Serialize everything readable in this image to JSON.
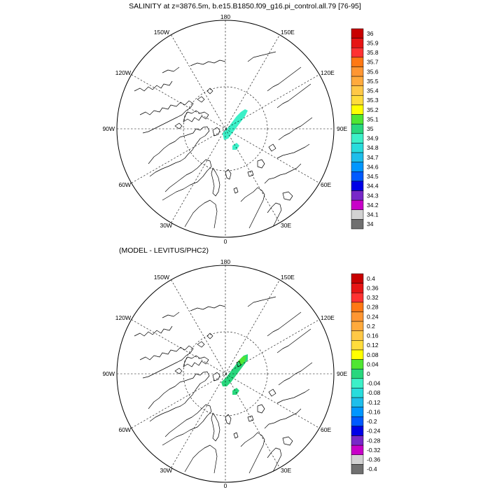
{
  "panels": [
    {
      "id": "salinity",
      "title": "SALINITY at z=3876.5m, b.e15.B1850.f09_g16.pi_control.all.79 [76-95]",
      "lon_labels": {
        "top": "180",
        "bottom": "0",
        "left": "90W",
        "right": "90E",
        "ul1": "150W",
        "ul2": "120W",
        "ll1": "60W",
        "ll2": "30W",
        "ur1": "150E",
        "ur2": "120E",
        "lr1": "60E",
        "lr2": "30E"
      },
      "colorbar": {
        "labels": [
          "36",
          "35.9",
          "35.8",
          "35.7",
          "35.6",
          "35.5",
          "35.4",
          "35.3",
          "35.2",
          "35.1",
          "35",
          "34.9",
          "34.8",
          "34.7",
          "34.6",
          "34.5",
          "34.4",
          "34.3",
          "34.2",
          "34.1",
          "34"
        ],
        "colors": [
          "#c80000",
          "#e61414",
          "#ff3232",
          "#ff7814",
          "#ff9632",
          "#ffaa3c",
          "#ffc846",
          "#ffdc3c",
          "#ffff00",
          "#50e632",
          "#28d77d",
          "#3cf0c8",
          "#28dcdc",
          "#1ebeeb",
          "#0096ff",
          "#005aff",
          "#0000e6",
          "#7828c8",
          "#c800c8",
          "#d2d2d2",
          "#707070"
        ]
      },
      "field_color": "#3cf0c8"
    },
    {
      "id": "difference",
      "title": "(MODEL - LEVITUS/PHC2)",
      "lon_labels": {
        "top": "180",
        "bottom": "0",
        "left": "90W",
        "right": "90E",
        "ul1": "150W",
        "ul2": "120W",
        "ll1": "60W",
        "ll2": "30W",
        "ur1": "150E",
        "ur2": "120E",
        "lr1": "60E",
        "lr2": "30E"
      },
      "colorbar": {
        "labels": [
          "0.4",
          "0.36",
          "0.32",
          "0.28",
          "0.24",
          "0.2",
          "0.16",
          "0.12",
          "0.08",
          "0.04",
          "0",
          "-0.04",
          "-0.08",
          "-0.12",
          "-0.16",
          "-0.2",
          "-0.24",
          "-0.28",
          "-0.32",
          "-0.36",
          "-0.4"
        ],
        "colors": [
          "#c80000",
          "#e61414",
          "#ff3232",
          "#ff7814",
          "#ff9632",
          "#ffaa3c",
          "#ffc846",
          "#ffdc3c",
          "#ffff00",
          "#50e632",
          "#28d77d",
          "#3cf0c8",
          "#28dcdc",
          "#1ebeeb",
          "#0096ff",
          "#005aff",
          "#0000e6",
          "#7828c8",
          "#c800c8",
          "#d2d2d2",
          "#707070"
        ]
      },
      "field_color": "#28d77d",
      "field_accent": "#50e632"
    }
  ]
}
